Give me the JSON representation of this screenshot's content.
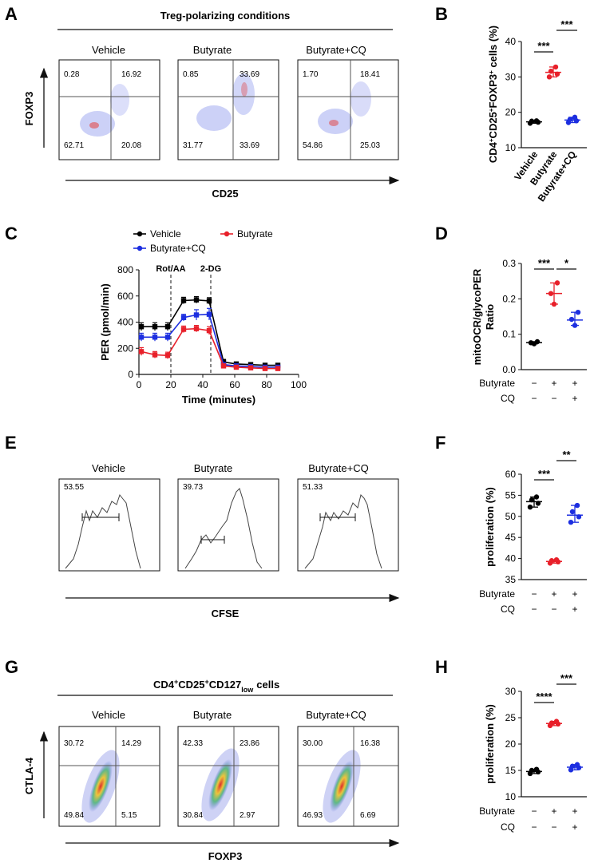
{
  "figure": {
    "panels": {
      "A": {
        "letter": "A",
        "title": "Treg-polarizing conditions",
        "x_axis": "CD25",
        "y_axis": "FOXP3",
        "samples": [
          {
            "name": "Vehicle",
            "q": [
              "0.28",
              "16.92",
              "62.71",
              "20.08"
            ]
          },
          {
            "name": "Butyrate",
            "q": [
              "0.85",
              "33.69",
              "31.77",
              "33.69"
            ]
          },
          {
            "name": "Butyrate+CQ",
            "q": [
              "1.70",
              "18.41",
              "54.86",
              "25.03"
            ]
          }
        ]
      },
      "B": {
        "letter": "B",
        "sig": [
          "***",
          "***"
        ]
      },
      "C": {
        "letter": "C",
        "legend": [
          "Vehicle",
          "Butyrate",
          "Butyrate+CQ"
        ],
        "markers": [
          "Rot/AA",
          "2-DG"
        ]
      },
      "D": {
        "letter": "D",
        "ylabel_lines": [
          "mitoOCR/glycoPER",
          "Ratio"
        ],
        "sig": [
          "***",
          "*"
        ]
      },
      "E": {
        "letter": "E",
        "x_axis": "CFSE",
        "samples": [
          {
            "name": "Vehicle",
            "value": "53.55"
          },
          {
            "name": "Butyrate",
            "value": "39.73"
          },
          {
            "name": "Butyrate+CQ",
            "value": "51.33"
          }
        ]
      },
      "F": {
        "letter": "F",
        "sig": [
          "***",
          "**"
        ]
      },
      "G": {
        "letter": "G",
        "title_main": "CD4",
        "title_mid": "CD25",
        "title_cd127": "CD127",
        "title_low": "low",
        "title_cells": "cells",
        "x_axis": "FOXP3",
        "y_axis": "CTLA-4",
        "samples": [
          {
            "name": "Vehicle",
            "q": [
              "30.72",
              "14.29",
              "49.84",
              "5.15"
            ]
          },
          {
            "name": "Butyrate",
            "q": [
              "42.33",
              "23.86",
              "30.84",
              "2.97"
            ]
          },
          {
            "name": "Butyrate+CQ",
            "q": [
              "30.00",
              "16.38",
              "46.93",
              "6.69"
            ]
          }
        ]
      },
      "H": {
        "letter": "H",
        "sig": [
          "****",
          "***"
        ]
      }
    },
    "treatment_rows": {
      "row1": "Butyrate",
      "row2": "CQ",
      "row1_signs": [
        "−",
        "+",
        "+"
      ],
      "row2_signs": [
        "−",
        "−",
        "+"
      ]
    }
  },
  "chart_data": [
    {
      "id": "B",
      "type": "scatter",
      "ylabel": "CD4+CD25+FOXP3+ cells (%)",
      "ylabel_base": [
        "CD4",
        "CD25",
        "FOXP3",
        "cells (%)"
      ],
      "ylabel_sup": "+",
      "categories": [
        "Vehicle",
        "Butyrate",
        "Butyrate+CQ"
      ],
      "series": [
        {
          "name": "Vehicle",
          "color": "#000000",
          "mean": 17.3,
          "points": [
            16.9,
            17.2,
            17.5,
            17.6
          ]
        },
        {
          "name": "Butyrate",
          "color": "#e8202a",
          "mean": 31.3,
          "points": [
            30.0,
            30.8,
            31.6,
            32.8
          ]
        },
        {
          "name": "Butyrate+CQ",
          "color": "#1c2ee0",
          "mean": 17.8,
          "points": [
            17.1,
            17.6,
            18.0,
            18.6
          ]
        }
      ],
      "ylim": [
        10,
        40
      ],
      "yticks": [
        "10",
        "20",
        "30",
        "40"
      ]
    },
    {
      "id": "C",
      "type": "line",
      "xlabel": "Time (minutes)",
      "ylabel": "PER (pmol/min)",
      "xlim": [
        0,
        100
      ],
      "ylim": [
        0,
        800
      ],
      "xticks": [
        "0",
        "20",
        "40",
        "60",
        "80",
        "100"
      ],
      "yticks": [
        "0",
        "200",
        "400",
        "600",
        "800"
      ],
      "x": [
        1.5,
        10,
        18,
        28,
        36,
        44,
        53,
        61,
        70,
        79,
        87
      ],
      "series": [
        {
          "name": "Vehicle",
          "color": "#000000",
          "values": [
            365,
            365,
            365,
            565,
            570,
            562,
            95,
            80,
            75,
            70,
            70
          ],
          "err": [
            30,
            30,
            30,
            25,
            25,
            25,
            20,
            15,
            15,
            15,
            15
          ]
        },
        {
          "name": "Butyrate+CQ",
          "color": "#1c2ee0",
          "values": [
            285,
            285,
            285,
            435,
            455,
            460,
            75,
            65,
            60,
            55,
            55
          ],
          "err": [
            30,
            30,
            30,
            25,
            40,
            45,
            15,
            15,
            15,
            15,
            15
          ]
        },
        {
          "name": "Butyrate",
          "color": "#e8202a",
          "values": [
            175,
            150,
            145,
            345,
            350,
            335,
            65,
            55,
            50,
            45,
            45
          ],
          "err": [
            30,
            25,
            25,
            25,
            25,
            30,
            15,
            15,
            15,
            15,
            15
          ]
        }
      ],
      "vlines": [
        20,
        45
      ]
    },
    {
      "id": "D",
      "type": "scatter",
      "ylabel": "mitoOCR/glycoPER Ratio",
      "series": [
        {
          "name": "Vehicle",
          "color": "#000000",
          "mean": 0.076,
          "points": [
            0.073,
            0.076,
            0.079
          ]
        },
        {
          "name": "Butyrate",
          "color": "#e8202a",
          "mean": 0.215,
          "points": [
            0.185,
            0.215,
            0.245
          ]
        },
        {
          "name": "Butyrate+CQ",
          "color": "#1c2ee0",
          "mean": 0.14,
          "points": [
            0.125,
            0.142,
            0.162
          ]
        }
      ],
      "ylim": [
        0,
        0.3
      ],
      "yticks": [
        "0.0",
        "0.1",
        "0.2",
        "0.3"
      ]
    },
    {
      "id": "F",
      "type": "scatter",
      "ylabel": "proliferation (%)",
      "series": [
        {
          "name": "Vehicle",
          "color": "#000000",
          "mean": 53.5,
          "points": [
            52.2,
            53.1,
            53.9,
            54.6
          ]
        },
        {
          "name": "Butyrate",
          "color": "#e8202a",
          "mean": 39.3,
          "points": [
            38.9,
            39.2,
            39.5,
            39.7
          ]
        },
        {
          "name": "Butyrate+CQ",
          "color": "#1c2ee0",
          "mean": 50.3,
          "points": [
            48.6,
            49.9,
            51.1,
            52.6
          ]
        }
      ],
      "ylim": [
        35,
        60
      ],
      "yticks": [
        "35",
        "40",
        "45",
        "50",
        "55",
        "60"
      ]
    },
    {
      "id": "H",
      "type": "scatter",
      "ylabel": "proliferation (%)",
      "series": [
        {
          "name": "Vehicle",
          "color": "#000000",
          "mean": 14.8,
          "points": [
            14.4,
            14.7,
            15.0,
            15.2
          ]
        },
        {
          "name": "Butyrate",
          "color": "#e8202a",
          "mean": 23.9,
          "points": [
            23.5,
            23.8,
            24.0,
            24.3
          ]
        },
        {
          "name": "Butyrate+CQ",
          "color": "#1c2ee0",
          "mean": 15.6,
          "points": [
            15.1,
            15.5,
            15.8,
            16.1
          ]
        }
      ],
      "ylim": [
        10,
        30
      ],
      "yticks": [
        "10",
        "15",
        "20",
        "25",
        "30"
      ]
    }
  ]
}
